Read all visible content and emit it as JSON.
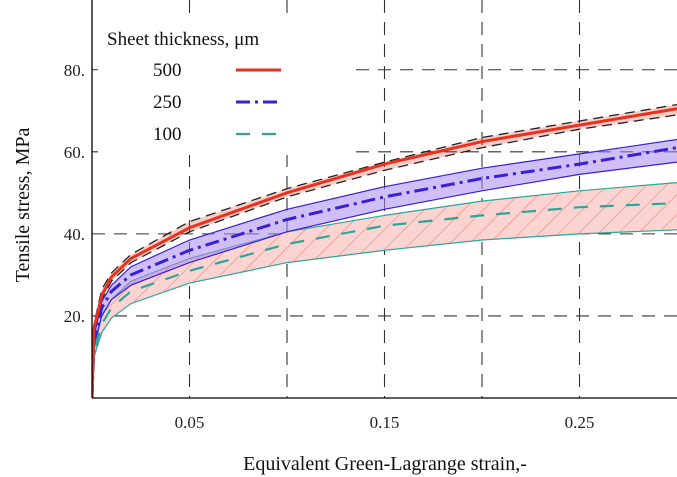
{
  "chart_data": {
    "type": "line",
    "title": "",
    "xlabel": "Equivalent Green-Lagrange strain,-",
    "ylabel": "Tensile stress, MPa",
    "xlim": [
      0,
      0.3
    ],
    "ylim": [
      0,
      97
    ],
    "x_ticks": [
      {
        "value": 0.05,
        "label": "0.05"
      },
      {
        "value": 0.15,
        "label": "0.15"
      },
      {
        "value": 0.25,
        "label": "0.25"
      }
    ],
    "y_ticks": [
      {
        "value": 20,
        "label": "20."
      },
      {
        "value": 40,
        "label": "40."
      },
      {
        "value": 60,
        "label": "60."
      },
      {
        "value": 80,
        "label": "80."
      }
    ],
    "grid": "dashed",
    "legend_title": "Sheet thickness, μm",
    "legend_position": "top-left",
    "series": [
      {
        "name": "500",
        "style": "solid",
        "color": "#e8321e",
        "band_color": "#e8321e",
        "x": [
          0,
          0.001,
          0.005,
          0.01,
          0.02,
          0.05,
          0.1,
          0.15,
          0.2,
          0.25,
          0.3
        ],
        "y": [
          0,
          17,
          25,
          29.5,
          34,
          41.5,
          50,
          57,
          62.5,
          66.5,
          70.5
        ],
        "lower": [
          0,
          16,
          24,
          28.5,
          33,
          40.5,
          49,
          55.5,
          61,
          65.5,
          69
        ],
        "upper": [
          0,
          18,
          26.5,
          30.5,
          35,
          43,
          51,
          57.5,
          63.5,
          67.5,
          71.5
        ]
      },
      {
        "name": "250",
        "style": "dashdot",
        "color": "#3a1fd6",
        "band_color": "#a98bef",
        "x": [
          0,
          0.001,
          0.005,
          0.01,
          0.02,
          0.05,
          0.1,
          0.15,
          0.2,
          0.25,
          0.3
        ],
        "y": [
          0,
          14,
          22,
          26,
          30,
          36,
          43.5,
          49,
          53.5,
          57,
          61
        ],
        "lower": [
          0,
          13,
          20,
          24,
          27.5,
          33,
          40.5,
          46,
          50.5,
          54.5,
          57.5
        ],
        "upper": [
          0,
          15,
          23.5,
          27.5,
          32,
          38.5,
          46,
          51.5,
          56,
          59.5,
          63
        ]
      },
      {
        "name": "100",
        "style": "dashed",
        "color": "#2aa69a",
        "band_color": "#f3a7a3",
        "x": [
          0,
          0.001,
          0.005,
          0.01,
          0.02,
          0.05,
          0.1,
          0.15,
          0.2,
          0.25,
          0.3
        ],
        "y": [
          0,
          11,
          18,
          22,
          26,
          31,
          37.5,
          42,
          44.5,
          46.5,
          47.5
        ],
        "lower": [
          0,
          10,
          16,
          19.5,
          23,
          28,
          33,
          36,
          38.5,
          40,
          41
        ],
        "upper": [
          0,
          12,
          20,
          24,
          28.5,
          34,
          40.5,
          44.5,
          48,
          50.5,
          52.5
        ]
      }
    ]
  }
}
